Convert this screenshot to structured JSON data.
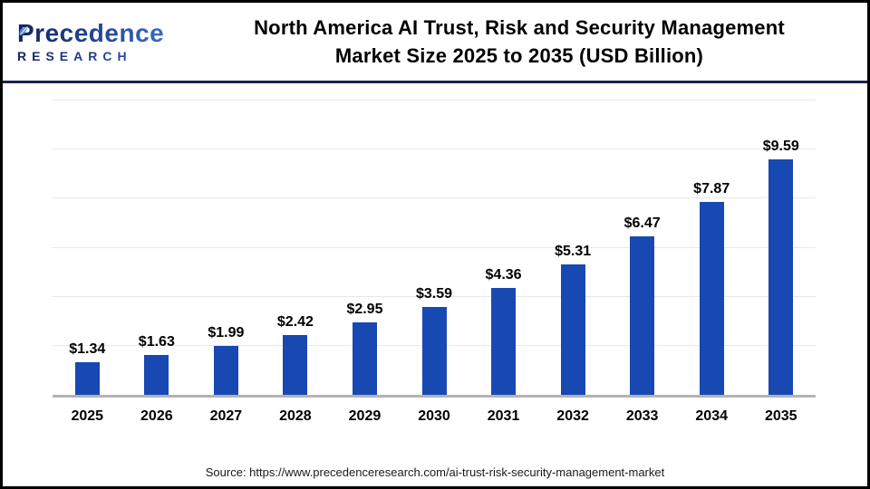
{
  "header": {
    "logo": {
      "name": "Precedence",
      "subname": "RESEARCH"
    },
    "title_line1": "North America AI Trust, Risk and Security Management",
    "title_line2": "Market Size 2025 to 2035 (USD Billion)"
  },
  "chart_data": {
    "type": "bar",
    "title": "North America AI Trust, Risk and Security Management Market Size 2025 to 2035 (USD Billion)",
    "categories": [
      "2025",
      "2026",
      "2027",
      "2028",
      "2029",
      "2030",
      "2031",
      "2032",
      "2033",
      "2034",
      "2035"
    ],
    "values": [
      1.34,
      1.63,
      1.99,
      2.42,
      2.95,
      3.59,
      4.36,
      5.31,
      6.47,
      7.87,
      9.59
    ],
    "value_labels": [
      "$1.34",
      "$1.63",
      "$1.99",
      "$2.42",
      "$2.95",
      "$3.59",
      "$4.36",
      "$5.31",
      "$6.47",
      "$7.87",
      "$9.59"
    ],
    "xlabel": "",
    "ylabel": "",
    "ylim": [
      0,
      12
    ],
    "gridline_step": 2,
    "grid": true,
    "legend": "none",
    "bar_color": "#1848b2",
    "baseline_color": "#b3b3b3",
    "gridline_color": "#e8e8e8"
  },
  "footer": {
    "source": "Source: https://www.precedenceresearch.com/ai-trust-risk-security-management-market"
  }
}
